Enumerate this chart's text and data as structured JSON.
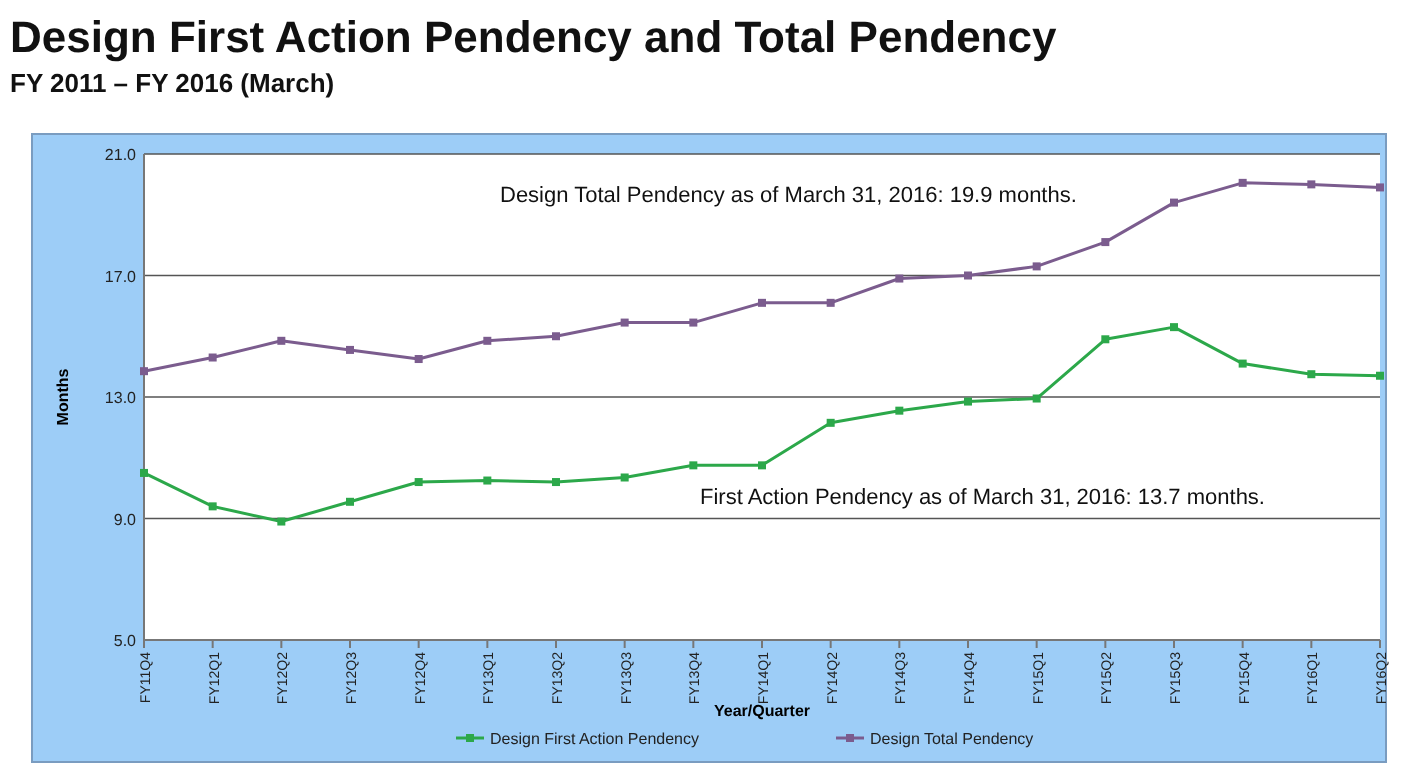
{
  "chart_data": {
    "type": "line",
    "title": "Design First Action Pendency and Total Pendency",
    "subtitle": "FY 2011 – FY 2016 (March)",
    "xlabel": "Year/Quarter",
    "ylabel": "Months",
    "categories": [
      "FY11Q4",
      "FY12Q1",
      "FY12Q2",
      "FY12Q3",
      "FY12Q4",
      "FY13Q1",
      "FY13Q2",
      "FY13Q3",
      "FY13Q4",
      "FY14Q1",
      "FY14Q2",
      "FY14Q3",
      "FY14Q4",
      "FY15Q1",
      "FY15Q2",
      "FY15Q3",
      "FY15Q4",
      "FY16Q1",
      "FY16Q2"
    ],
    "series": [
      {
        "name": "Design First Action Pendency",
        "color": "#2ca84a",
        "values": [
          10.5,
          9.4,
          8.9,
          9.55,
          10.2,
          10.25,
          10.2,
          10.35,
          10.75,
          10.75,
          12.15,
          12.55,
          12.85,
          12.95,
          14.9,
          15.3,
          14.1,
          13.75,
          13.7
        ]
      },
      {
        "name": "Design Total Pendency",
        "color": "#7b5c8e",
        "values": [
          13.85,
          14.3,
          14.85,
          14.55,
          14.25,
          14.85,
          15.0,
          15.45,
          15.45,
          16.1,
          16.1,
          16.9,
          17.0,
          17.3,
          18.1,
          19.4,
          20.05,
          20.0,
          19.9
        ]
      }
    ],
    "ylim": [
      5,
      21
    ],
    "yticks": [
      {
        "value": 5,
        "label": "5.0"
      },
      {
        "value": 9,
        "label": "9.0"
      },
      {
        "value": 13,
        "label": "13.0"
      },
      {
        "value": 17,
        "label": "17.0"
      },
      {
        "value": 21,
        "label": "21.0"
      }
    ],
    "grid": "y",
    "legend": "bottom",
    "marker": "square",
    "line_style": "solid",
    "annotations": [
      "Design Total Pendency as of March 31, 2016: 19.9 months.",
      "First Action Pendency as of March 31, 2016: 13.7 months."
    ]
  }
}
